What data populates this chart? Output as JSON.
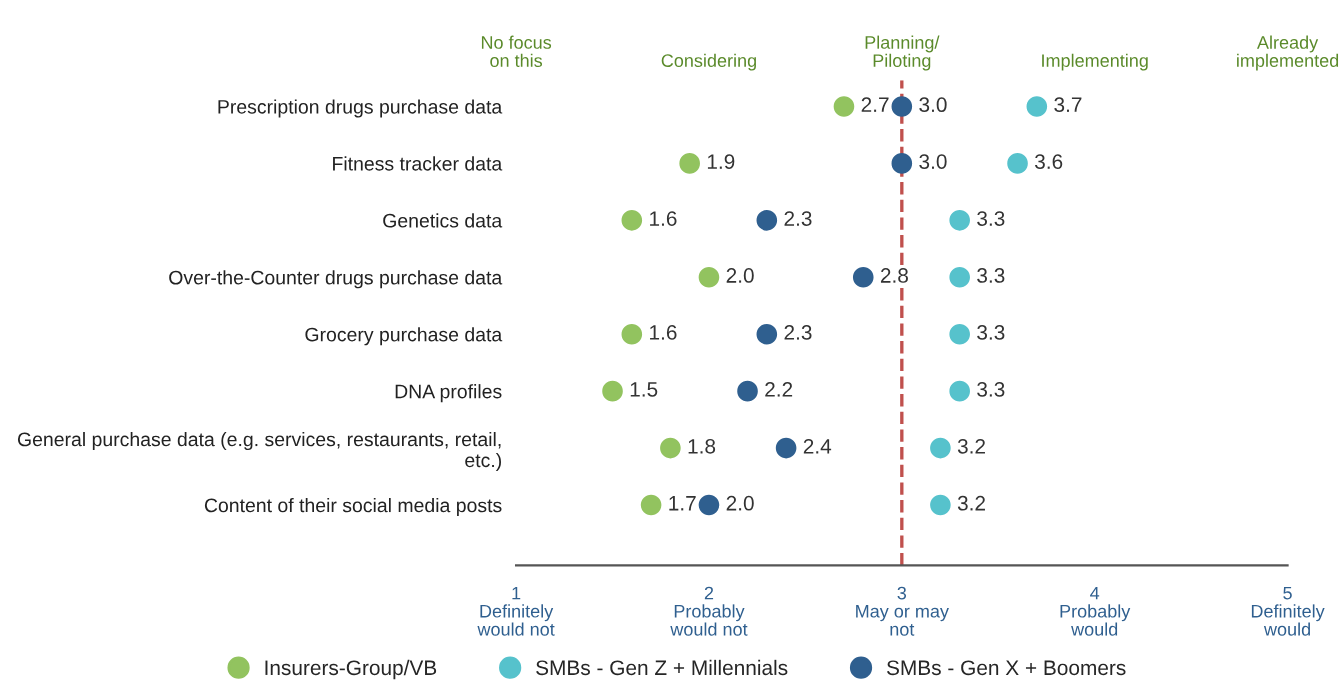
{
  "chart_data": {
    "type": "scatter",
    "categories": [
      "Prescription drugs purchase data",
      "Fitness tracker data",
      "Genetics data",
      "Over-the-Counter drugs purchase data",
      "Grocery purchase data",
      "DNA profiles",
      "General purchase data (e.g. services, restaurants, retail,\netc.)",
      "Content of their social media posts"
    ],
    "orientation": "horizontal",
    "series": [
      {
        "name": "Insurers-Group/VB",
        "color": "#92c35f",
        "values": [
          2.7,
          1.9,
          1.6,
          2.0,
          1.6,
          1.5,
          1.8,
          1.7
        ],
        "value_labels": [
          "2.7",
          "1.9",
          "1.6",
          "2.0",
          "1.6",
          "1.5",
          "1.8",
          "1.7"
        ]
      },
      {
        "name": "SMBs - Gen Z + Millennials",
        "color": "#56c2cc",
        "values": [
          3.7,
          3.6,
          3.3,
          3.3,
          3.3,
          3.3,
          3.2,
          3.2
        ],
        "value_labels": [
          "3.7",
          "3.6",
          "3.3",
          "3.3",
          "3.3",
          "3.3",
          "3.2",
          "3.2"
        ]
      },
      {
        "name": "SMBs - Gen X + Boomers",
        "color": "#2f5f8f",
        "values": [
          3.0,
          3.0,
          2.3,
          2.8,
          2.3,
          2.2,
          2.4,
          2.0
        ],
        "value_labels": [
          "3.0",
          "3.0",
          "2.3",
          "2.8",
          "2.3",
          "2.2",
          "2.4",
          "2.0"
        ]
      }
    ],
    "xlim": [
      1,
      5
    ],
    "xticks": [
      {
        "value": 1,
        "label": "1\nDefinitely\nwould not"
      },
      {
        "value": 2,
        "label": "2\nProbably\nwould not"
      },
      {
        "value": 3,
        "label": "3\nMay or may\nnot"
      },
      {
        "value": 4,
        "label": "4\nProbably\nwould"
      },
      {
        "value": 5,
        "label": "5\nDefinitely\nwould"
      }
    ],
    "annotations": [
      "No focus\non this",
      "Considering",
      "Planning/\nPiloting",
      "Implementing",
      "Already\nimplemented"
    ],
    "ref_lines": [
      {
        "axis": "x",
        "value": 3,
        "label": null,
        "color": "#c0504d",
        "line_style": "dashed"
      }
    ],
    "marker": "circle",
    "grid": false,
    "legend": "bottom"
  }
}
